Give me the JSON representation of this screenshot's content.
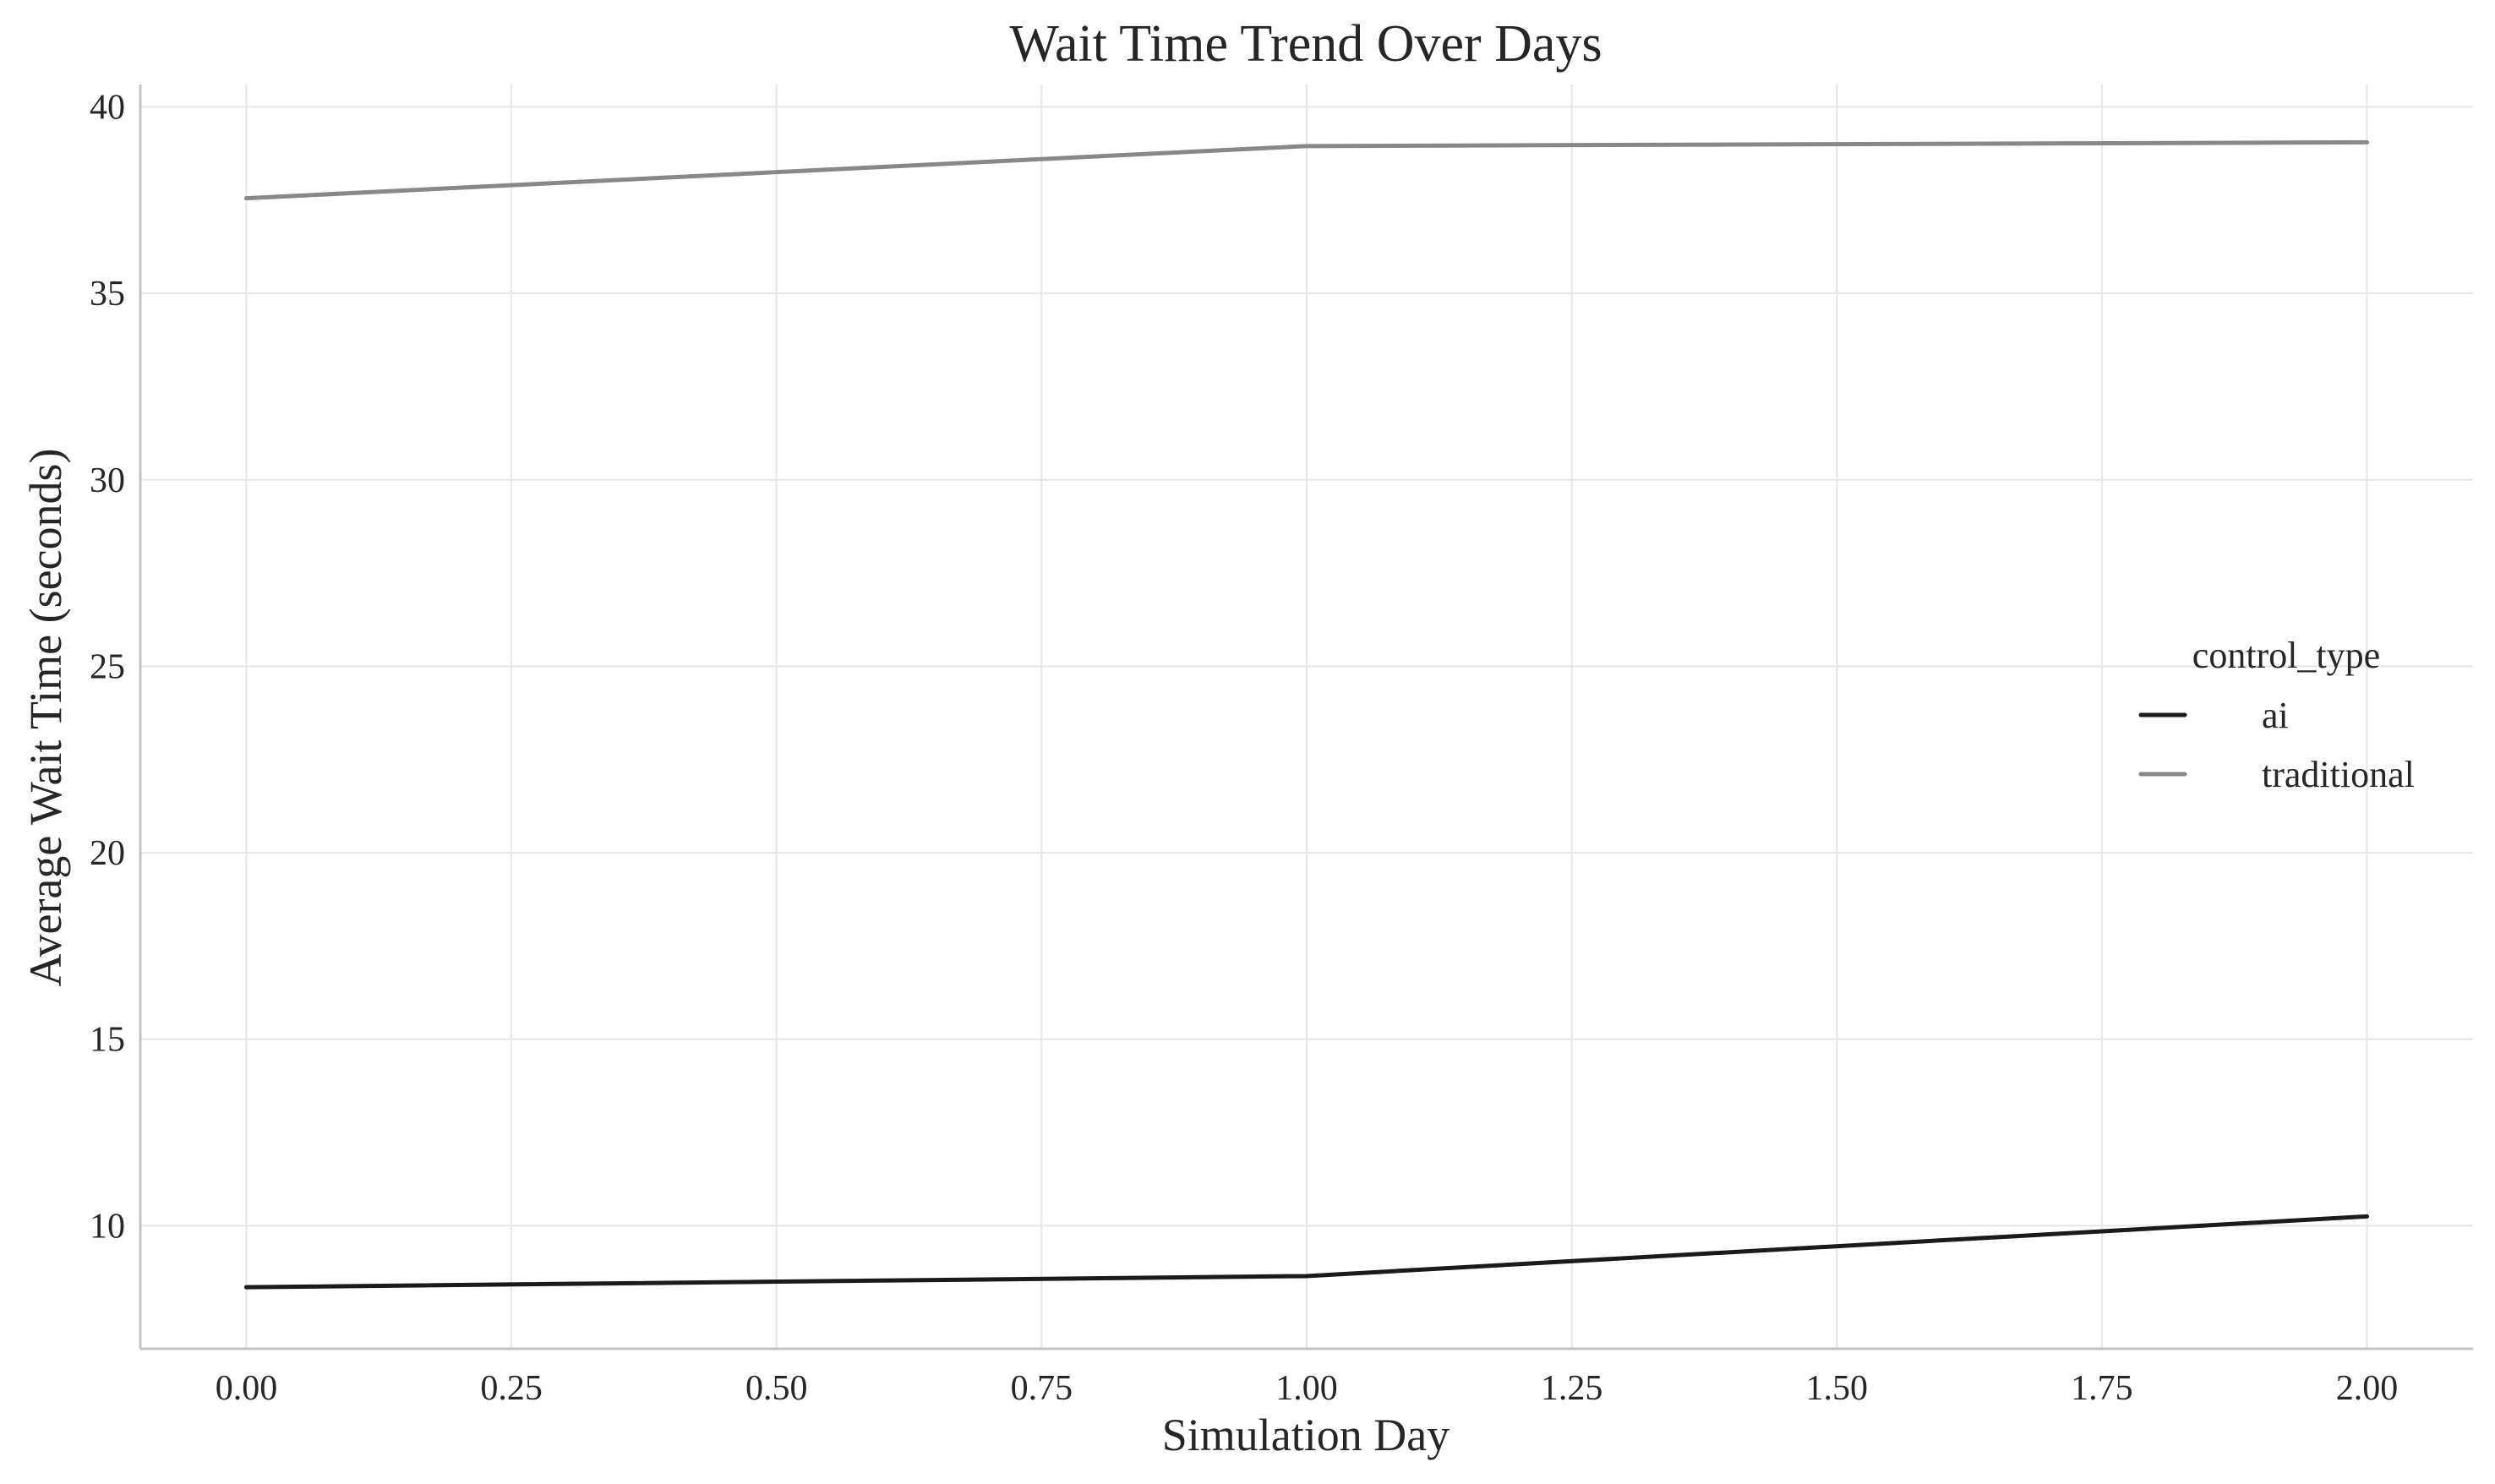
{
  "chart_data": {
    "type": "line",
    "title": "Wait Time Trend Over Days",
    "xlabel": "Simulation Day",
    "ylabel": "Average Wait Time (seconds)",
    "xlim": [
      -0.1,
      2.1
    ],
    "ylim": [
      6.7,
      40.6
    ],
    "x_ticks": [
      "0.00",
      "0.25",
      "0.50",
      "0.75",
      "1.00",
      "1.25",
      "1.50",
      "1.75",
      "2.00"
    ],
    "y_ticks": [
      "10",
      "15",
      "20",
      "25",
      "30",
      "35",
      "40"
    ],
    "grid": true,
    "legend": {
      "title": "control_type",
      "placement": "center-right"
    },
    "x": [
      0,
      1,
      2
    ],
    "series": [
      {
        "name": "ai",
        "color": "#1a1a1a",
        "values": [
          8.35,
          8.65,
          10.25
        ]
      },
      {
        "name": "traditional",
        "color": "#888888",
        "values": [
          37.55,
          38.95,
          39.05
        ]
      }
    ]
  }
}
